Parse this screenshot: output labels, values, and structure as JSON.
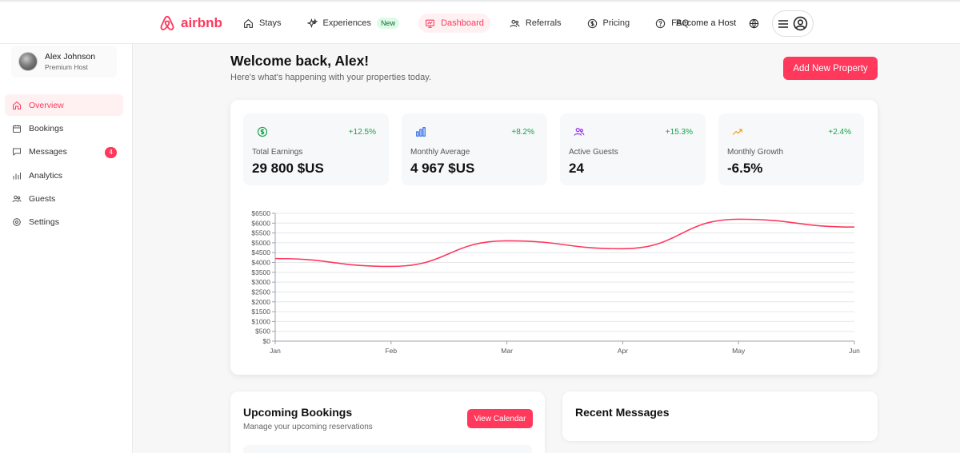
{
  "brand": {
    "name": "airbnb",
    "color": "#ff385c"
  },
  "nav": {
    "items": [
      {
        "label": "Stays",
        "icon": "home-icon"
      },
      {
        "label": "Experiences",
        "icon": "sparkles-icon",
        "badge": "New"
      },
      {
        "label": "Dashboard",
        "icon": "dashboard-icon",
        "active": true
      },
      {
        "label": "Referrals",
        "icon": "users-icon"
      },
      {
        "label": "Pricing",
        "icon": "dollar-icon"
      },
      {
        "label": "FAQ",
        "icon": "help-icon"
      }
    ],
    "host_link": "Become a Host",
    "globe_icon": "globe-icon",
    "menu_icon": "hamburger-icon",
    "profile_icon": "user-circle-icon"
  },
  "sidebar": {
    "user": {
      "name": "Alex Johnson",
      "role": "Premium Host"
    },
    "items": [
      {
        "label": "Overview",
        "icon": "home-icon",
        "active": true
      },
      {
        "label": "Bookings",
        "icon": "calendar-icon"
      },
      {
        "label": "Messages",
        "icon": "message-icon",
        "count": "4"
      },
      {
        "label": "Analytics",
        "icon": "bar-chart-icon"
      },
      {
        "label": "Guests",
        "icon": "users-icon"
      },
      {
        "label": "Settings",
        "icon": "gear-icon"
      }
    ]
  },
  "main": {
    "welcome": "Welcome back, Alex!",
    "subtitle": "Here's what's happening with your properties today.",
    "add_button": "Add New Property",
    "stats": [
      {
        "label": "Total Earnings",
        "value": "29 800 $US",
        "delta": "+12.5%",
        "icon": "dollar-icon",
        "icon_color": "#16a34a"
      },
      {
        "label": "Monthly Average",
        "value": "4 967 $US",
        "delta": "+8.2%",
        "icon": "bar-chart-icon",
        "icon_color": "#2563eb"
      },
      {
        "label": "Active Guests",
        "value": "24",
        "delta": "+15.3%",
        "icon": "users-icon",
        "icon_color": "#9333ea"
      },
      {
        "label": "Monthly Growth",
        "value": "-6.5%",
        "delta": "+2.4%",
        "icon": "trending-up-icon",
        "icon_color": "#f59e0b"
      }
    ],
    "bookings": {
      "title": "Upcoming Bookings",
      "subtitle": "Manage your upcoming reservations",
      "button": "View Calendar"
    },
    "messages": {
      "title": "Recent Messages"
    }
  },
  "chart_data": {
    "type": "line",
    "categories": [
      "Jan",
      "Feb",
      "Mar",
      "Apr",
      "May",
      "Jun"
    ],
    "series": [
      {
        "values": [
          4200,
          3800,
          5100,
          4700,
          6200,
          5800
        ],
        "color": "#ff385c"
      }
    ],
    "y_ticks": [
      "$0",
      "$500",
      "$1000",
      "$1500",
      "$2000",
      "$2500",
      "$3000",
      "$3500",
      "$4000",
      "$4500",
      "$5000",
      "$5500",
      "$6000",
      "$6500"
    ],
    "ylim": [
      0,
      6500
    ],
    "grid": true,
    "title": "",
    "xlabel": "",
    "ylabel": ""
  }
}
